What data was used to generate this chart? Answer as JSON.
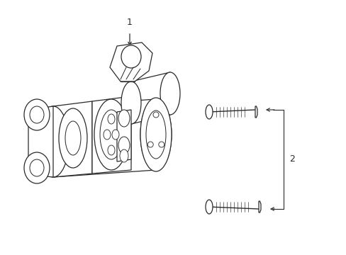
{
  "background_color": "#ffffff",
  "line_color": "#2a2a2a",
  "lw": 0.9,
  "callout_1_label": "1",
  "callout_2_label": "2",
  "figsize": [
    4.89,
    3.6
  ],
  "dpi": 100
}
